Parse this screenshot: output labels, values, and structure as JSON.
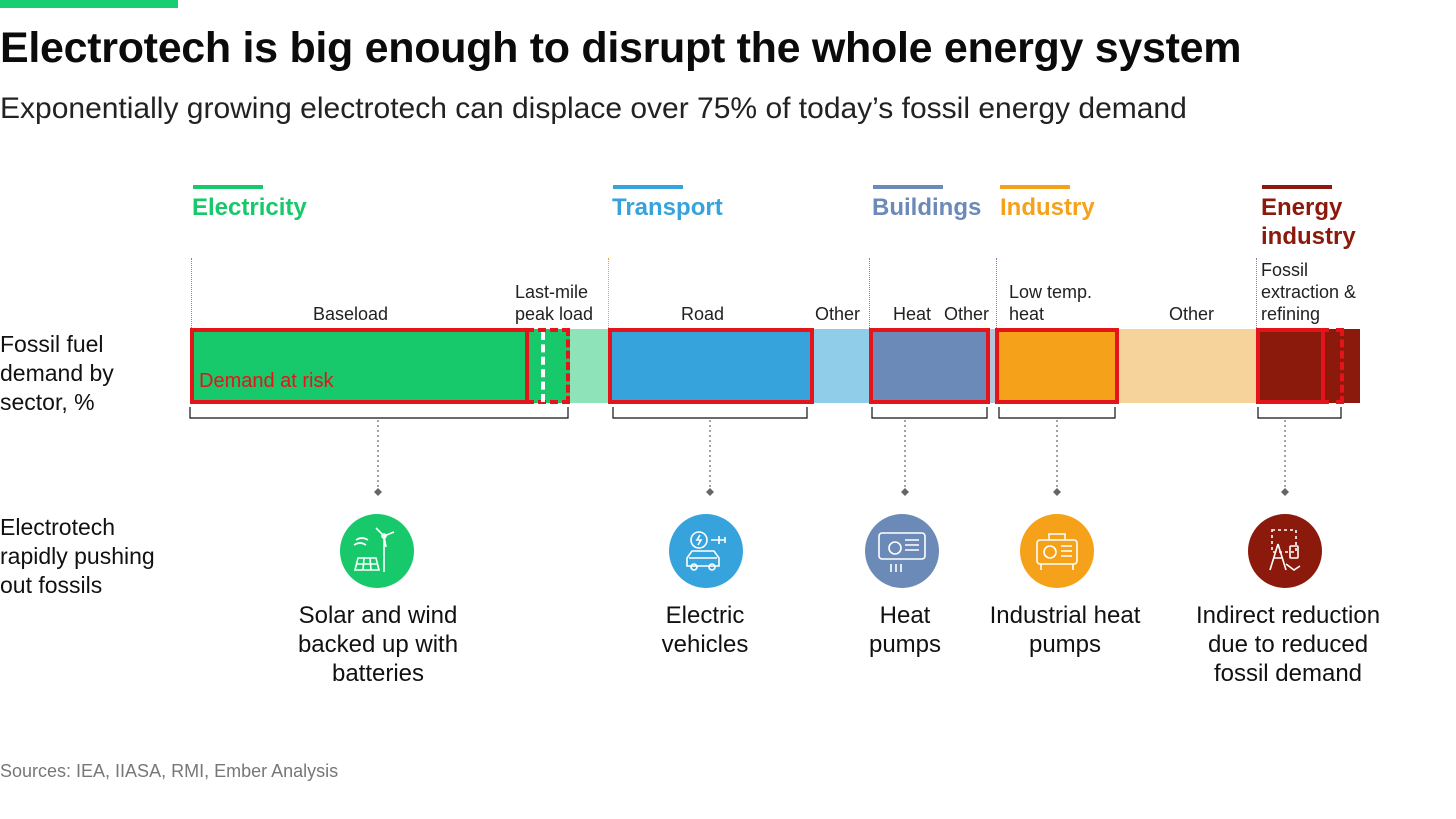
{
  "header": {
    "title": "Electrotech is big enough to disrupt the whole energy system",
    "subtitle": "Exponentially growing electrotech can displace over 75% of today’s fossil energy demand"
  },
  "sectors": [
    {
      "label": "Electricity",
      "color": "#17c96b"
    },
    {
      "label": "Transport",
      "color": "#36a3dc"
    },
    {
      "label": "Buildings",
      "color": "#6c8ab8"
    },
    {
      "label": "Industry",
      "color": "#f5a21a"
    },
    {
      "label": "Energy industry",
      "color": "#8b1a0c"
    }
  ],
  "segment_labels": {
    "baseload": "Baseload",
    "last_mile": "Last-mile peak load",
    "road": "Road",
    "transport_other": "Other",
    "heat": "Heat",
    "buildings_other": "Other",
    "low_temp_heat": "Low temp. heat",
    "industry_other": "Other",
    "fossil_extraction": "Fossil extraction & refining"
  },
  "bar_annotation": "Demand at risk",
  "row_labels": {
    "fossil_demand": "Fossil fuel demand by sector, %",
    "electrotech": "Electrotech rapidly pushing out fossils"
  },
  "solutions": [
    {
      "caption": "Solar and wind backed up with batteries",
      "icon": "solar-wind-battery-icon",
      "color": "#17c96b"
    },
    {
      "caption": "Electric vehicles",
      "icon": "electric-vehicle-icon",
      "color": "#36a3dc"
    },
    {
      "caption": "Heat pumps",
      "icon": "heat-pump-icon",
      "color": "#6c8ab8"
    },
    {
      "caption": "Industrial heat pumps",
      "icon": "industrial-heat-pump-icon",
      "color": "#f5a21a"
    },
    {
      "caption": "Indirect reduction due to reduced fossil demand",
      "icon": "fossil-extraction-icon",
      "color": "#8b1a0c"
    }
  ],
  "risk_color": "#e3151a",
  "source": "Sources: IEA, IIASA, RMI, Ember Analysis"
}
